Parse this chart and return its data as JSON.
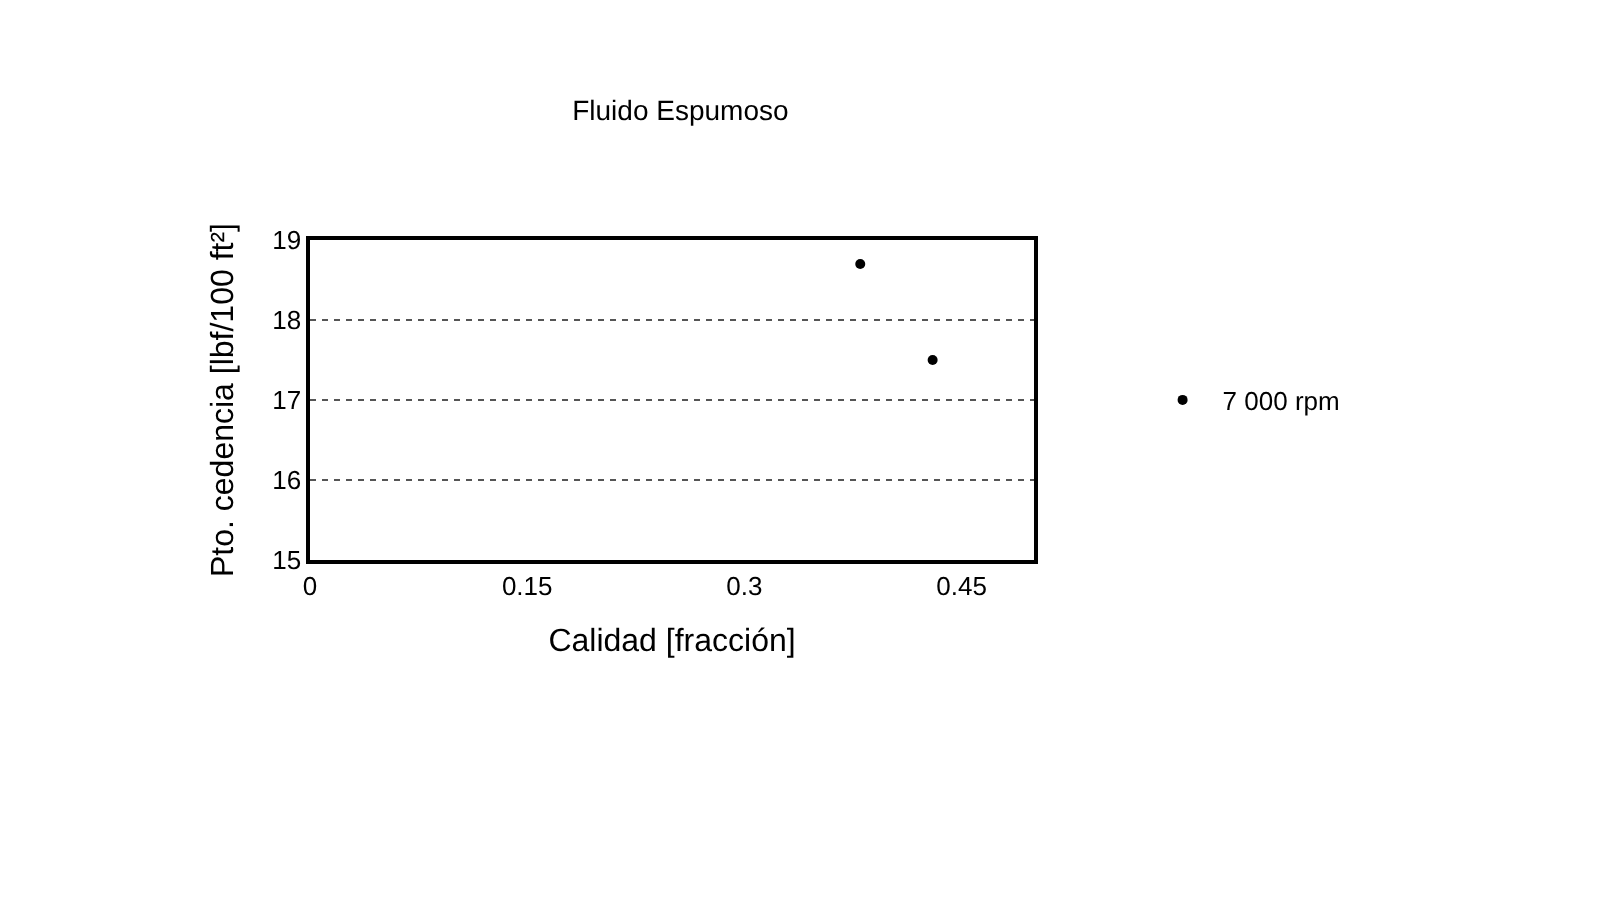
{
  "chart_data": {
    "type": "scatter",
    "title": "Fluido Espumoso",
    "xlabel": "Calidad [fracción]",
    "ylabel": "Pto. cedencia [lbf/100 ft²]",
    "series": [
      {
        "name": "7 000 rpm",
        "color": "#000000",
        "x": [
          0.38,
          0.43
        ],
        "values": [
          18.7,
          17.5
        ]
      }
    ],
    "xlim": [
      0,
      0.5
    ],
    "xticks": [
      0,
      0.15,
      0.3,
      0.45
    ],
    "ylim": [
      15,
      19
    ],
    "yticks": [
      15,
      16,
      17,
      18,
      19
    ],
    "grid": "y",
    "legend": "right",
    "marker": "circle"
  }
}
